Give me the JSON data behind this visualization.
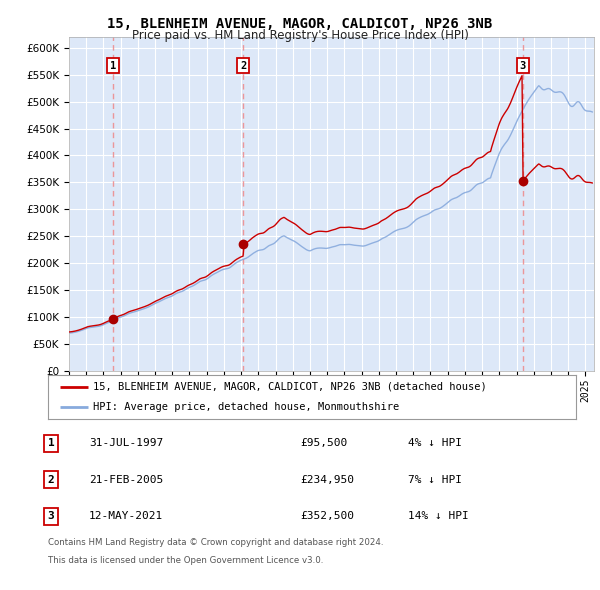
{
  "title1": "15, BLENHEIM AVENUE, MAGOR, CALDICOT, NP26 3NB",
  "title2": "Price paid vs. HM Land Registry's House Price Index (HPI)",
  "ylabel_ticks": [
    "£0",
    "£50K",
    "£100K",
    "£150K",
    "£200K",
    "£250K",
    "£300K",
    "£350K",
    "£400K",
    "£450K",
    "£500K",
    "£550K",
    "£600K"
  ],
  "ytick_values": [
    0,
    50000,
    100000,
    150000,
    200000,
    250000,
    300000,
    350000,
    400000,
    450000,
    500000,
    550000,
    600000
  ],
  "xlim_start": 1995.0,
  "xlim_end": 2025.5,
  "ylim_min": 0,
  "ylim_max": 620000,
  "sale_dates": [
    1997.58,
    2005.13,
    2021.36
  ],
  "sale_prices": [
    95500,
    234950,
    352500
  ],
  "sale_labels": [
    "1",
    "2",
    "3"
  ],
  "dashed_line_color": "#ee8888",
  "sale_dot_color": "#aa0000",
  "hpi_line_color": "#88aadd",
  "price_line_color": "#cc0000",
  "legend_label1": "15, BLENHEIM AVENUE, MAGOR, CALDICOT, NP26 3NB (detached house)",
  "legend_label2": "HPI: Average price, detached house, Monmouthshire",
  "table_rows": [
    {
      "num": "1",
      "date": "31-JUL-1997",
      "price": "£95,500",
      "hpi": "4% ↓ HPI"
    },
    {
      "num": "2",
      "date": "21-FEB-2005",
      "price": "£234,950",
      "hpi": "7% ↓ HPI"
    },
    {
      "num": "3",
      "date": "12-MAY-2021",
      "price": "£352,500",
      "hpi": "14% ↓ HPI"
    }
  ],
  "footnote1": "Contains HM Land Registry data © Crown copyright and database right 2024.",
  "footnote2": "This data is licensed under the Open Government Licence v3.0.",
  "plot_bg_color": "#dde8f8"
}
